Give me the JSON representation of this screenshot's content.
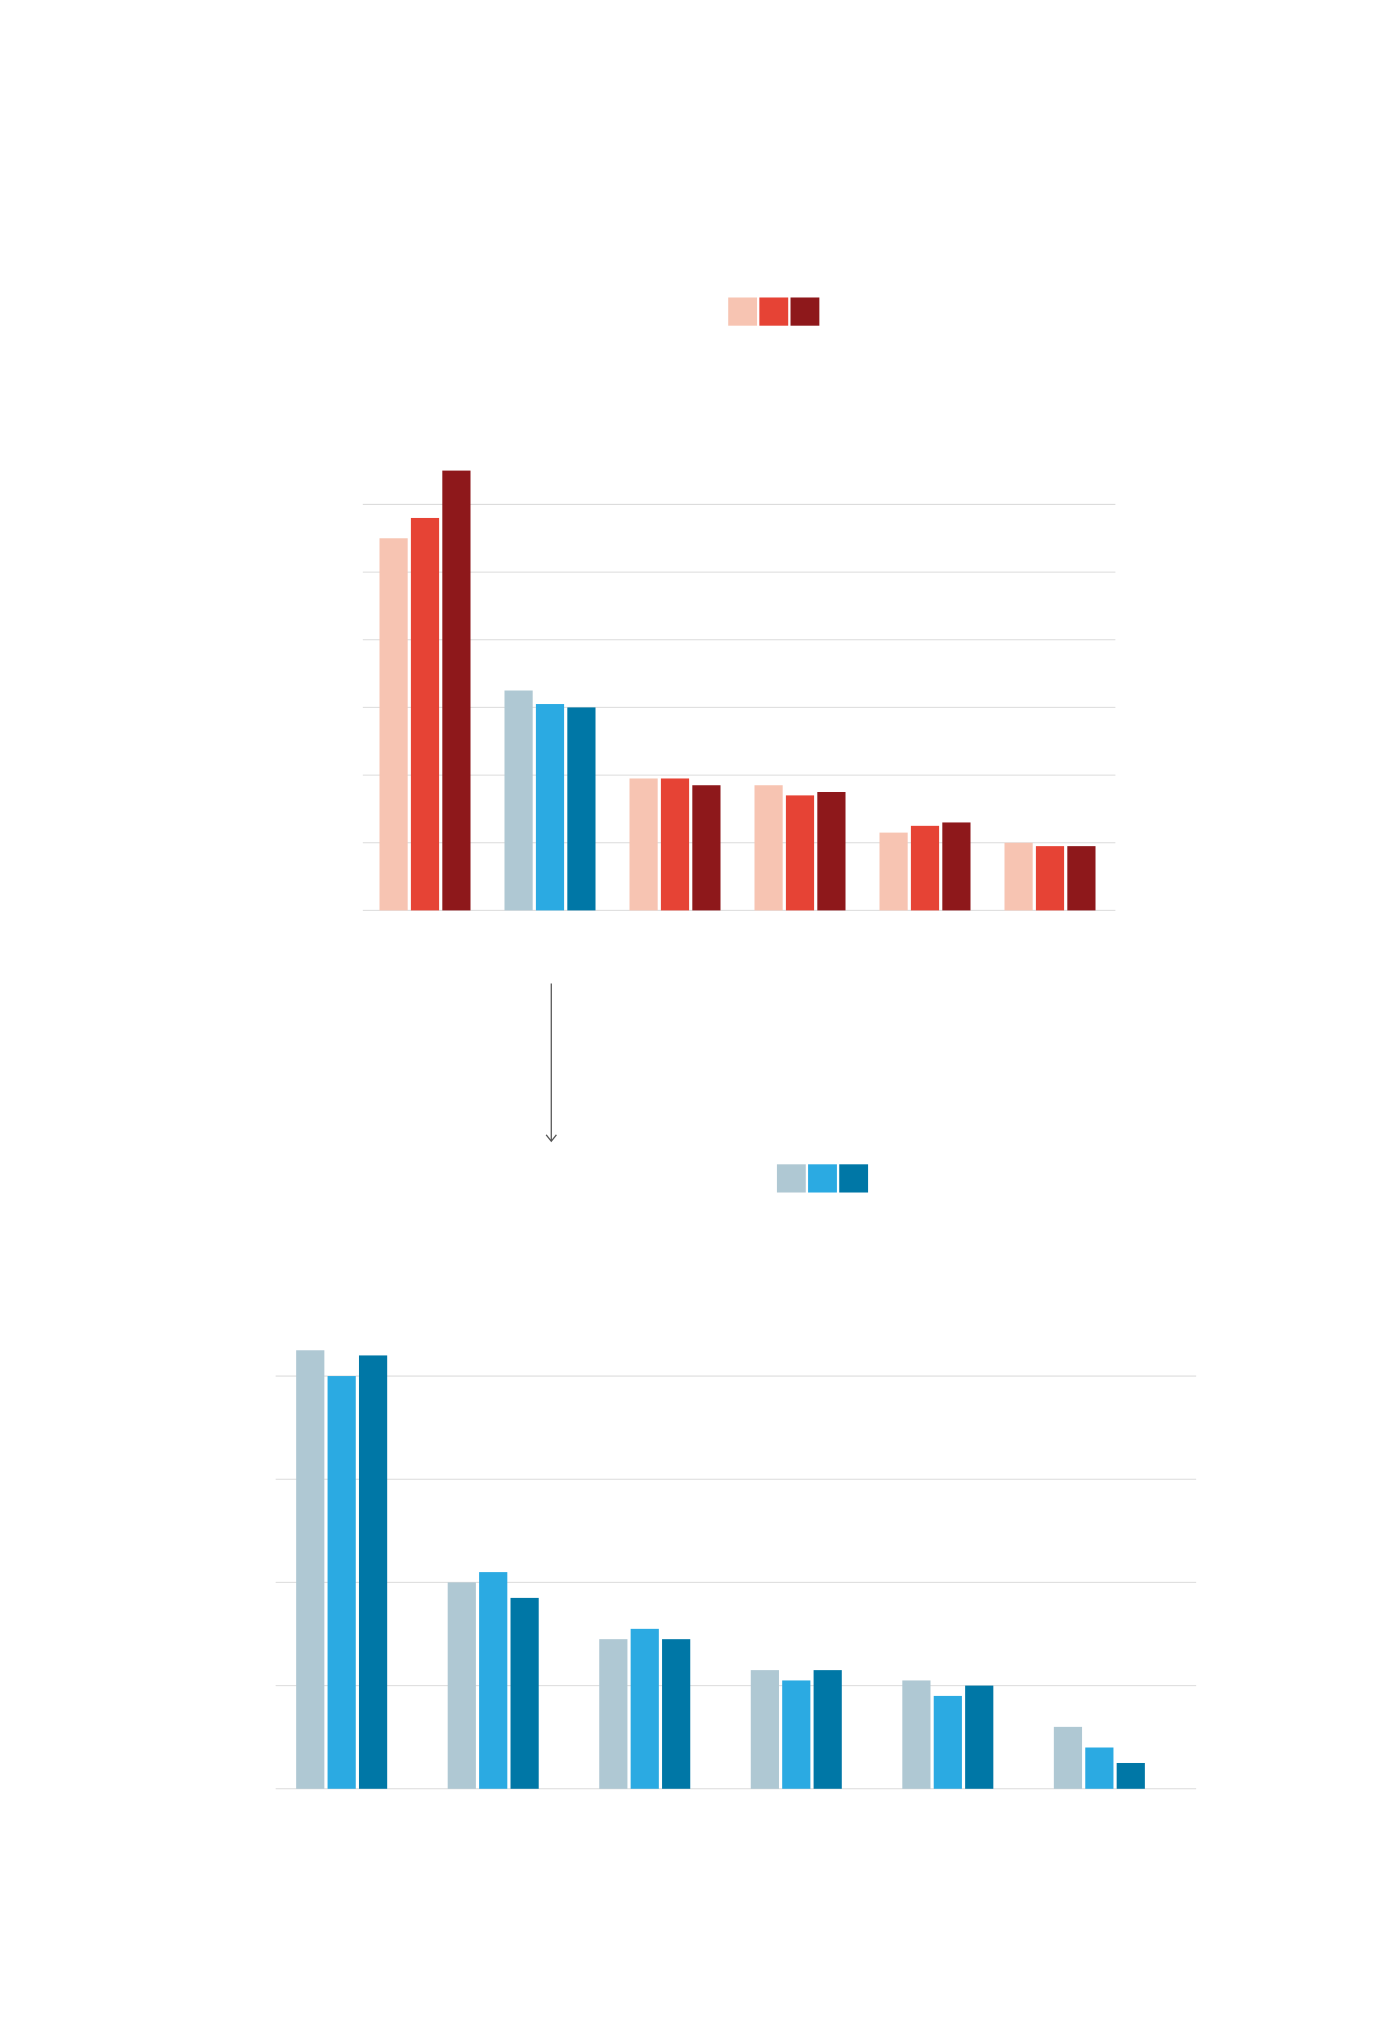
{
  "chart_data": [
    {
      "type": "bar",
      "categories": [
        null,
        null,
        null,
        null,
        null,
        null
      ],
      "series": [
        {
          "values": [
            5.5,
            3.25,
            1.95,
            1.85,
            1.15,
            1.0
          ],
          "colors": [
            "#f7c4b2",
            "#afc8d3",
            "#f7c4b2",
            "#f7c4b2",
            "#f7c4b2",
            "#f7c4b2"
          ]
        },
        {
          "values": [
            5.8,
            3.05,
            1.95,
            1.7,
            1.25,
            0.95
          ],
          "colors": [
            "#e64335",
            "#2baae2",
            "#e64335",
            "#e64335",
            "#e64335",
            "#e64335"
          ]
        },
        {
          "values": [
            6.5,
            3.0,
            1.85,
            1.75,
            1.3,
            0.95
          ],
          "colors": [
            "#8e181b",
            "#0077a6",
            "#8e181b",
            "#8e181b",
            "#8e181b",
            "#8e181b"
          ]
        }
      ],
      "legend_colors": [
        "#f7c4b2",
        "#e64335",
        "#8e181b"
      ],
      "ylim": [
        0,
        6.5
      ],
      "yticks": [
        0,
        1,
        2,
        3,
        4,
        5,
        6
      ],
      "grid": true
    },
    {
      "type": "bar",
      "categories": [
        null,
        null,
        null,
        null,
        null,
        null
      ],
      "series": [
        {
          "values": [
            4.25,
            2.0,
            1.45,
            1.15,
            1.05,
            0.6
          ],
          "colors": [
            "#afc8d3",
            "#afc8d3",
            "#afc8d3",
            "#afc8d3",
            "#afc8d3",
            "#afc8d3"
          ]
        },
        {
          "values": [
            4.0,
            2.1,
            1.55,
            1.05,
            0.9,
            0.4
          ],
          "colors": [
            "#2baae2",
            "#2baae2",
            "#2baae2",
            "#2baae2",
            "#2baae2",
            "#2baae2"
          ]
        },
        {
          "values": [
            4.2,
            1.85,
            1.45,
            1.15,
            1.0,
            0.25
          ],
          "colors": [
            "#0077a6",
            "#0077a6",
            "#0077a6",
            "#0077a6",
            "#0077a6",
            "#0077a6"
          ]
        }
      ],
      "legend_colors": [
        "#afc8d3",
        "#2baae2",
        "#0077a6"
      ],
      "ylim": [
        0,
        4.3
      ],
      "yticks": [
        0,
        1,
        2,
        3,
        4
      ],
      "grid": true
    }
  ]
}
